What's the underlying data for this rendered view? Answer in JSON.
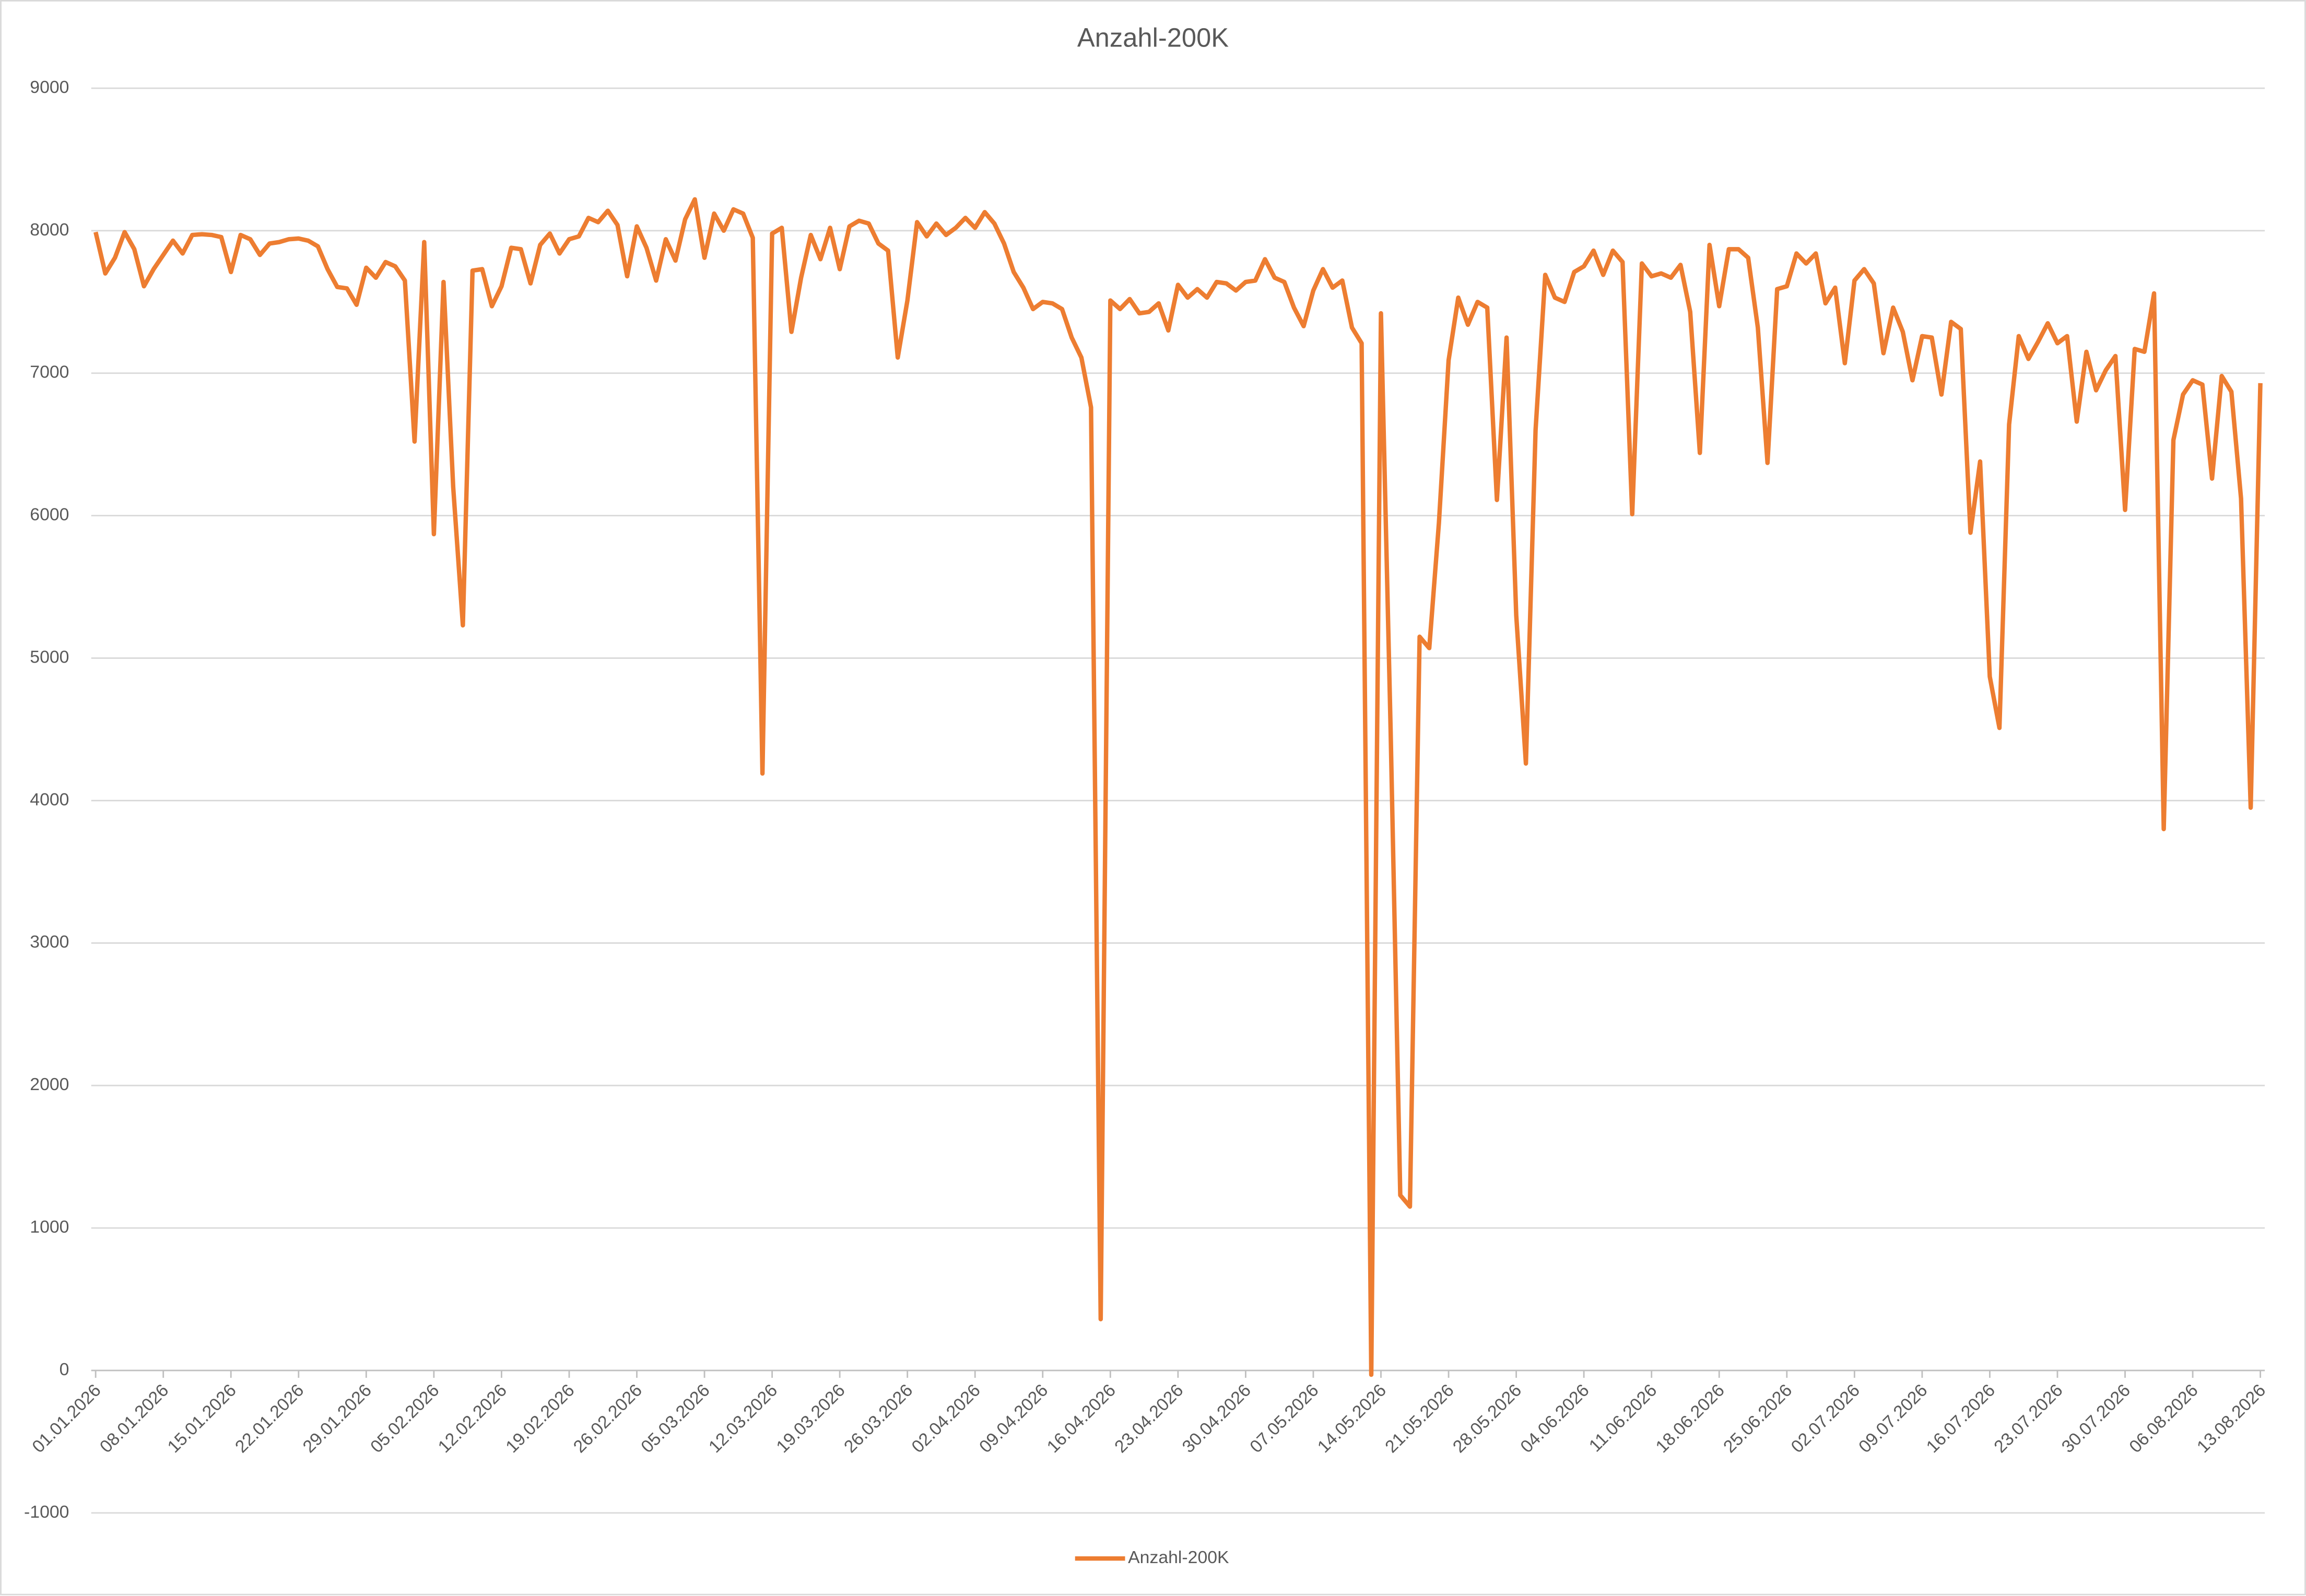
{
  "chart_data": {
    "type": "line",
    "title": "Anzahl-200K",
    "categories": [
      "01.01.2026",
      null,
      null,
      null,
      null,
      null,
      null,
      "08.01.2026",
      null,
      null,
      null,
      null,
      null,
      null,
      "15.01.2026",
      null,
      null,
      null,
      null,
      null,
      null,
      "22.01.2026",
      null,
      null,
      null,
      null,
      null,
      null,
      "29.01.2026",
      null,
      null,
      null,
      null,
      null,
      null,
      "05.02.2026",
      null,
      null,
      null,
      null,
      null,
      null,
      "12.02.2026",
      null,
      null,
      null,
      null,
      null,
      null,
      "19.02.2026",
      null,
      null,
      null,
      null,
      null,
      null,
      "26.02.2026",
      null,
      null,
      null,
      null,
      null,
      null,
      "05.03.2026",
      null,
      null,
      null,
      null,
      null,
      null,
      "12.03.2026",
      null,
      null,
      null,
      null,
      null,
      null,
      "19.03.2026",
      null,
      null,
      null,
      null,
      null,
      null,
      "26.03.2026",
      null,
      null,
      null,
      null,
      null,
      null,
      "02.04.2026",
      null,
      null,
      null,
      null,
      null,
      null,
      "09.04.2026",
      null,
      null,
      null,
      null,
      null,
      null,
      "16.04.2026",
      null,
      null,
      null,
      null,
      null,
      null,
      "23.04.2026",
      null,
      null,
      null,
      null,
      null,
      null,
      "30.04.2026",
      null,
      null,
      null,
      null,
      null,
      null,
      "07.05.2026",
      null,
      null,
      null,
      null,
      null,
      null,
      "14.05.2026",
      null,
      null,
      null,
      null,
      null,
      null,
      "21.05.2026",
      null,
      null,
      null,
      null,
      null,
      null,
      "28.05.2026",
      null,
      null,
      null,
      null,
      null,
      null,
      "04.06.2026",
      null,
      null,
      null,
      null,
      null,
      null,
      "11.06.2026",
      null,
      null,
      null,
      null,
      null,
      null,
      "18.06.2026",
      null,
      null,
      null,
      null,
      null,
      null,
      "25.06.2026",
      null,
      null,
      null,
      null,
      null,
      null,
      "02.07.2026",
      null,
      null,
      null,
      null,
      null,
      null,
      "09.07.2026",
      null,
      null,
      null,
      null,
      null,
      null,
      "16.07.2026",
      null,
      null,
      null,
      null,
      null,
      null,
      "23.07.2026",
      null,
      null,
      null,
      null,
      null,
      null,
      "30.07.2026",
      null,
      null,
      null,
      null,
      null,
      null,
      "06.08.2026",
      null,
      null,
      null,
      null,
      null,
      null,
      "13.08.2026"
    ],
    "series": [
      {
        "name": "Anzahl-200K",
        "color": "#ED7D31",
        "values": [
          7990,
          7700,
          7810,
          7990,
          7870,
          7610,
          7730,
          7830,
          7930,
          7840,
          7970,
          7975,
          7970,
          7955,
          7710,
          7970,
          7940,
          7830,
          7910,
          7920,
          7940,
          7945,
          7930,
          7890,
          7730,
          7605,
          7595,
          7480,
          7740,
          7670,
          7780,
          7750,
          7650,
          6520,
          7920,
          5870,
          7640,
          6200,
          5230,
          7720,
          7730,
          7470,
          7610,
          7880,
          7870,
          7630,
          7900,
          7980,
          7840,
          7940,
          7960,
          8090,
          8060,
          8140,
          8040,
          7680,
          8030,
          7880,
          7650,
          7940,
          7790,
          8080,
          8220,
          7810,
          8120,
          8000,
          8150,
          8120,
          7950,
          4190,
          7980,
          8020,
          7290,
          7670,
          7970,
          7800,
          8020,
          7730,
          8030,
          8070,
          8050,
          7910,
          7860,
          7110,
          7510,
          8060,
          7960,
          8050,
          7970,
          8020,
          8090,
          8020,
          8130,
          8050,
          7910,
          7710,
          7600,
          7450,
          7500,
          7490,
          7450,
          7250,
          7110,
          6760,
          360,
          7510,
          7450,
          7520,
          7420,
          7430,
          7490,
          7300,
          7620,
          7530,
          7590,
          7530,
          7640,
          7630,
          7580,
          7640,
          7650,
          7800,
          7670,
          7640,
          7460,
          7330,
          7580,
          7730,
          7600,
          7650,
          7320,
          7210,
          -30,
          7420,
          4500,
          1230,
          1150,
          5150,
          5070,
          5950,
          7090,
          7530,
          7340,
          7500,
          7460,
          6110,
          7250,
          5300,
          4260,
          6600,
          7690,
          7530,
          7500,
          7710,
          7750,
          7860,
          7690,
          7860,
          7780,
          6010,
          7770,
          7680,
          7700,
          7670,
          7760,
          7430,
          6440,
          7900,
          7470,
          7870,
          7870,
          7810,
          7320,
          6370,
          7590,
          7610,
          7840,
          7770,
          7840,
          7490,
          7600,
          7070,
          7650,
          7730,
          7630,
          7140,
          7460,
          7290,
          6950,
          7260,
          7250,
          6850,
          7360,
          7310,
          5880,
          6380,
          4870,
          4510,
          6640,
          7260,
          7100,
          7220,
          7350,
          7210,
          7260,
          6660,
          7150,
          6880,
          7020,
          7120,
          6040,
          7170,
          7150,
          7560,
          3800,
          6530,
          6850,
          6950,
          6920,
          6260,
          6980,
          6870,
          6120,
          3950,
          6930
        ]
      }
    ],
    "ylim": [
      -1000,
      9000
    ],
    "yticks": [
      -1000,
      0,
      1000,
      2000,
      3000,
      4000,
      5000,
      6000,
      7000,
      8000,
      9000
    ],
    "grid": true,
    "legend": "bottom"
  }
}
